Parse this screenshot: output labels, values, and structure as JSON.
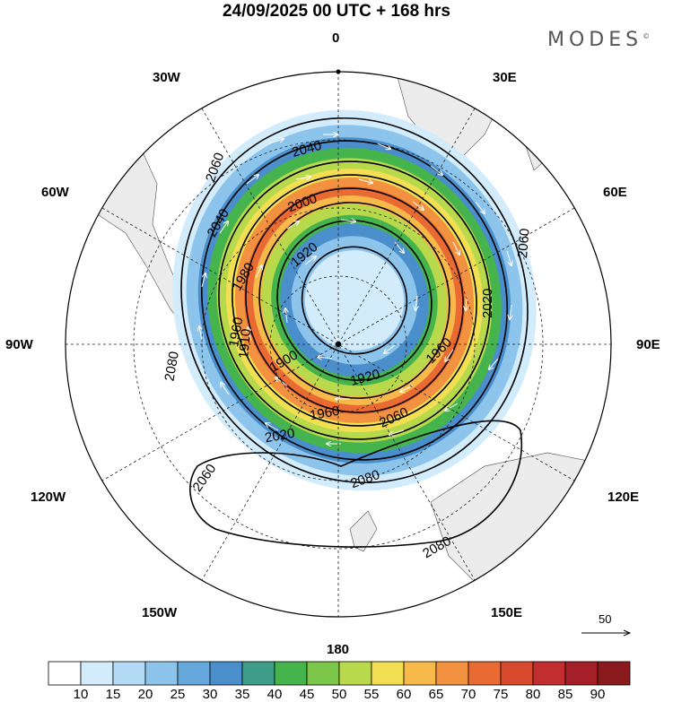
{
  "title": "24/09/2025  00 UTC  + 168 hrs",
  "brand": "MODES",
  "brand_mark": "©",
  "longitudes": {
    "top": "0",
    "bottom": "180",
    "w30": "30W",
    "e30": "30E",
    "w60": "60W",
    "e60": "60E",
    "w90": "90W",
    "e90": "90E",
    "w120": "120W",
    "e120": "120E",
    "w150": "150W",
    "e150": "150E"
  },
  "vector_scale_label": "50",
  "colorbar": {
    "labels": [
      "10",
      "15",
      "20",
      "25",
      "30",
      "35",
      "40",
      "45",
      "50",
      "55",
      "60",
      "65",
      "70",
      "75",
      "80",
      "85",
      "90"
    ],
    "colors": [
      "#ffffff",
      "#d3ecfb",
      "#b3dbf6",
      "#8dc4ec",
      "#66a8dc",
      "#4a8fcb",
      "#3f9e8a",
      "#46b44c",
      "#7cc64a",
      "#b9d94d",
      "#f2df54",
      "#f6b94a",
      "#f29241",
      "#ea6a34",
      "#d84a2e",
      "#c22e2e",
      "#a51f27",
      "#8b1a1f"
    ]
  },
  "contours": [
    "2060",
    "2040",
    "2000",
    "1920",
    "1980",
    "1960",
    "2080",
    "2020",
    "1900",
    "1910",
    "1960",
    "1960",
    "2060",
    "2040",
    "2060",
    "2060",
    "2080",
    "2080",
    "1920",
    "2020"
  ],
  "chart_data": {
    "type": "polar-stereographic map",
    "field": "wind speed shading with geopotential height contours and wind vectors",
    "shading_levels": [
      10,
      15,
      20,
      25,
      30,
      35,
      40,
      45,
      50,
      55,
      60,
      65,
      70,
      75,
      80,
      85,
      90
    ],
    "contour_levels": [
      1900,
      1910,
      1920,
      1960,
      1980,
      2000,
      2020,
      2040,
      2060,
      2080
    ],
    "valid_time": "24/09/2025 00 UTC + 168 hrs",
    "vector_reference": 50
  }
}
